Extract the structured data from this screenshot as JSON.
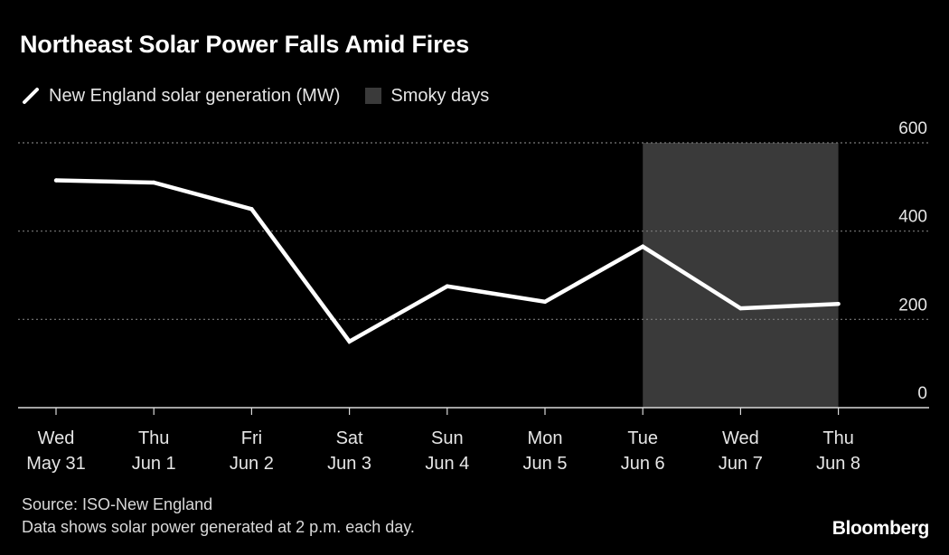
{
  "title": "Northeast Solar Power Falls Amid Fires",
  "legend": {
    "line_label": "New England solar generation (MW)",
    "shade_label": "Smoky days"
  },
  "colors": {
    "background": "#000000",
    "line": "#ffffff",
    "shade": "#3a3a3a",
    "grid": "#7a7a7a",
    "text": "#ffffff"
  },
  "footer": {
    "source": "Source: ISO-New England",
    "note": "Data shows solar power generated at 2 p.m. each day."
  },
  "brand": "Bloomberg",
  "chart_data": {
    "type": "line",
    "title": "Northeast Solar Power Falls Amid Fires",
    "categories": [
      [
        "Wed",
        "May 31"
      ],
      [
        "Thu",
        "Jun 1"
      ],
      [
        "Fri",
        "Jun 2"
      ],
      [
        "Sat",
        "Jun 3"
      ],
      [
        "Sun",
        "Jun 4"
      ],
      [
        "Mon",
        "Jun 5"
      ],
      [
        "Tue",
        "Jun 6"
      ],
      [
        "Wed",
        "Jun 7"
      ],
      [
        "Thu",
        "Jun 8"
      ]
    ],
    "series": [
      {
        "name": "New England solar generation (MW)",
        "values": [
          515,
          510,
          450,
          150,
          275,
          240,
          365,
          225,
          235
        ]
      }
    ],
    "shaded_range": {
      "label": "Smoky days",
      "from_index": 6,
      "to_index": 8
    },
    "ylim": [
      0,
      600
    ],
    "yticks": [
      0,
      200,
      400,
      600
    ],
    "grid": true,
    "y_axis_position": "right",
    "legend_position": "top-left"
  }
}
